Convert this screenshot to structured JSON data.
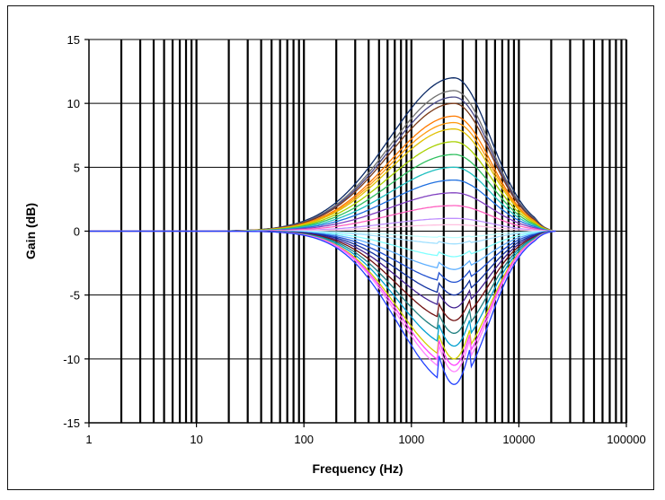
{
  "chart_data": {
    "type": "line",
    "title": "",
    "xlabel": "Frequency (Hz)",
    "ylabel": "Gain (dB)",
    "x_scale": "log",
    "xlim": [
      1,
      100000
    ],
    "ylim": [
      -15,
      15
    ],
    "x_tick_values": [
      1,
      10,
      100,
      1000,
      10000,
      100000
    ],
    "x_tick_labels": [
      "1",
      "10",
      "100",
      "1000",
      "10000",
      "100000"
    ],
    "y_tick_values": [
      -15,
      -10,
      -5,
      0,
      5,
      10,
      15
    ],
    "y_tick_labels": [
      "-15",
      "-10",
      "-5",
      "0",
      "5",
      "10",
      "15"
    ],
    "grid": true,
    "legend": "none",
    "center_frequency": 2500,
    "series_gains_db": [
      12,
      11,
      10.5,
      10,
      9,
      8.5,
      8,
      7,
      6,
      5,
      4,
      3,
      2,
      1,
      0.5,
      -0.5,
      -1,
      -2,
      -3,
      -4,
      -5,
      -6,
      -7,
      -8,
      -9,
      -10,
      -10.5,
      -11,
      -12
    ],
    "series_colors": [
      "#0b2a66",
      "#707070",
      "#4a4a8a",
      "#7a3a1a",
      "#ff7a00",
      "#ff9a10",
      "#e0c000",
      "#a8d000",
      "#30c060",
      "#20c0c0",
      "#2070e0",
      "#8040c0",
      "#ff60c0",
      "#c090ff",
      "#ffc0e0",
      "#c0ffff",
      "#a0e0ff",
      "#80ffff",
      "#60b0ff",
      "#2050d0",
      "#1030a0",
      "#402090",
      "#701010",
      "#208080",
      "#00a0d0",
      "#d0d000",
      "#ff40ff",
      "#ff80ff",
      "#2040ff"
    ]
  }
}
